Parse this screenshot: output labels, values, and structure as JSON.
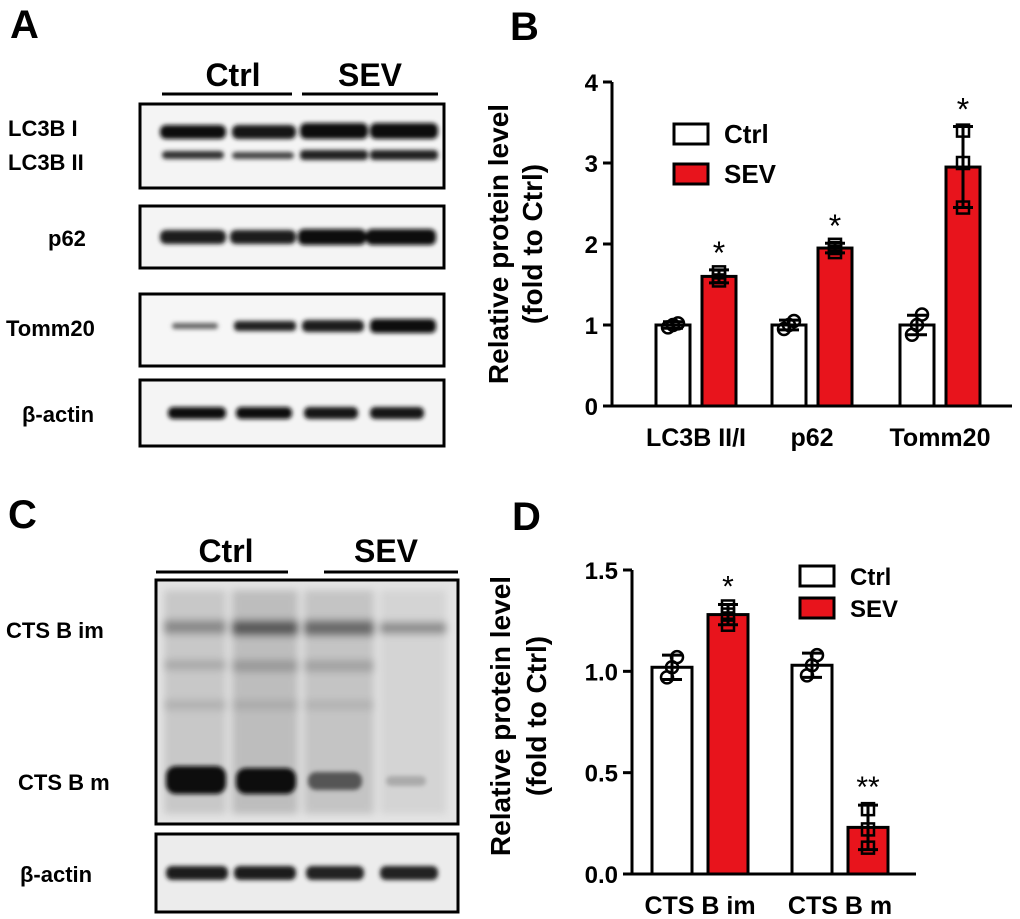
{
  "panels": {
    "a": {
      "letter": "A",
      "groups": [
        "Ctrl",
        "SEV"
      ],
      "bands": [
        "LC3B I",
        "LC3B II",
        "p62",
        "Tomm20",
        "β-actin"
      ]
    },
    "c": {
      "letter": "C",
      "groups": [
        "Ctrl",
        "SEV"
      ],
      "bands": [
        "CTS B im",
        "CTS B m",
        "β-actin"
      ]
    },
    "b": {
      "letter": "B"
    },
    "d": {
      "letter": "D"
    }
  },
  "chart_data": [
    {
      "type": "bar",
      "panel": "B",
      "ylabel": [
        "Relative protein level",
        "(fold to Ctrl)"
      ],
      "ylim": [
        0,
        4
      ],
      "yticks": [
        "0",
        "1",
        "2",
        "3",
        "4"
      ],
      "categories": [
        "LC3B II/I",
        "p62",
        "Tomm20"
      ],
      "legend": [
        "Ctrl",
        "SEV"
      ],
      "series": [
        {
          "name": "Ctrl",
          "color": "#ffffff",
          "values": [
            1.0,
            1.0,
            1.0
          ],
          "errors": [
            0.04,
            0.06,
            0.12
          ],
          "points": [
            [
              0.97,
              1.0,
              1.02
            ],
            [
              0.95,
              1.0,
              1.05
            ],
            [
              0.88,
              1.0,
              1.13
            ]
          ]
        },
        {
          "name": "SEV",
          "color": "#e8141c",
          "values": [
            1.6,
            1.95,
            2.95
          ],
          "errors": [
            0.08,
            0.06,
            0.5
          ],
          "points": [
            [
              1.55,
              1.6,
              1.65
            ],
            [
              1.9,
              1.95,
              1.99
            ],
            [
              2.45,
              3.0,
              3.4
            ]
          ]
        }
      ],
      "annotations": [
        "",
        "*",
        "",
        "*",
        "",
        "*"
      ]
    },
    {
      "type": "bar",
      "panel": "D",
      "ylabel": [
        "Relative protein level",
        "(fold to Ctrl)"
      ],
      "ylim": [
        0,
        1.5
      ],
      "yticks": [
        "0.0",
        "0.5",
        "1.0",
        "1.5"
      ],
      "categories": [
        "CTS B im",
        "CTS B m"
      ],
      "legend": [
        "Ctrl",
        "SEV"
      ],
      "series": [
        {
          "name": "Ctrl",
          "color": "#ffffff",
          "values": [
            1.02,
            1.03
          ],
          "errors": [
            0.06,
            0.06
          ],
          "points": [
            [
              0.97,
              1.02,
              1.07
            ],
            [
              0.98,
              1.03,
              1.08
            ]
          ]
        },
        {
          "name": "SEV",
          "color": "#e8141c",
          "values": [
            1.28,
            0.23
          ],
          "errors": [
            0.05,
            0.11
          ],
          "points": [
            [
              1.23,
              1.28,
              1.32
            ],
            [
              0.13,
              0.22,
              0.32
            ]
          ]
        }
      ],
      "annotations": [
        "",
        "*",
        "",
        "**"
      ]
    }
  ]
}
